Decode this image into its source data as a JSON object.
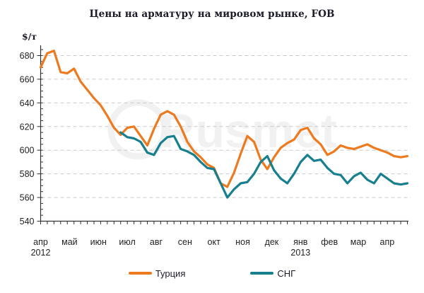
{
  "chart_data": {
    "type": "line",
    "title": "Цены на арматуру на мировом рынке, FOB",
    "ylabel": "$/т",
    "xlabel": "",
    "ylim": [
      540,
      688
    ],
    "yticks": [
      540,
      560,
      580,
      600,
      620,
      640,
      660,
      680
    ],
    "y_minor_step": 5,
    "grid": "horizontal-dashed",
    "legend_position": "bottom",
    "x_months": [
      "апр",
      "май",
      "июн",
      "июл",
      "авг",
      "сен",
      "окт",
      "ноя",
      "дек",
      "янв",
      "фев",
      "мар",
      "апр"
    ],
    "year_labels": [
      {
        "month_index": 0,
        "text": "2012"
      },
      {
        "month_index": 9,
        "text": "2013"
      }
    ],
    "x_frequency": "weekly",
    "series": [
      {
        "name": "Турция",
        "color": "#ED7A1E",
        "values": [
          670,
          682,
          684,
          666,
          665,
          669,
          658,
          651,
          644,
          638,
          629,
          619,
          613,
          619,
          620,
          612,
          604,
          618,
          630,
          633,
          630,
          620,
          607,
          599,
          594,
          588,
          585,
          572,
          569,
          581,
          597,
          612,
          607,
          592,
          584,
          594,
          602,
          606,
          609,
          617,
          619,
          610,
          605,
          596,
          599,
          604,
          602,
          601,
          603,
          605,
          602,
          600,
          598,
          595,
          594,
          595
        ]
      },
      {
        "name": "СНГ",
        "color": "#177F8E",
        "values": [
          null,
          null,
          null,
          null,
          null,
          null,
          null,
          null,
          null,
          null,
          null,
          null,
          615,
          611,
          610,
          607,
          598,
          596,
          606,
          611,
          612,
          601,
          599,
          596,
          590,
          585,
          584,
          572,
          560,
          567,
          572,
          573,
          580,
          590,
          595,
          583,
          576,
          572,
          580,
          590,
          596,
          591,
          592,
          585,
          580,
          579,
          572,
          578,
          581,
          575,
          572,
          580,
          576,
          572,
          571,
          572
        ]
      }
    ]
  },
  "legend": {
    "items": [
      {
        "label": "Турция",
        "color": "#ED7A1E"
      },
      {
        "label": "СНГ",
        "color": "#177F8E"
      }
    ]
  },
  "watermark": {
    "text": "Rusmet"
  },
  "colors": {
    "grid": "#c9c9c9",
    "axis": "#333333",
    "tick_text": "#222222",
    "title_text": "#1b1b27",
    "watermark": "#f1f1f1"
  }
}
